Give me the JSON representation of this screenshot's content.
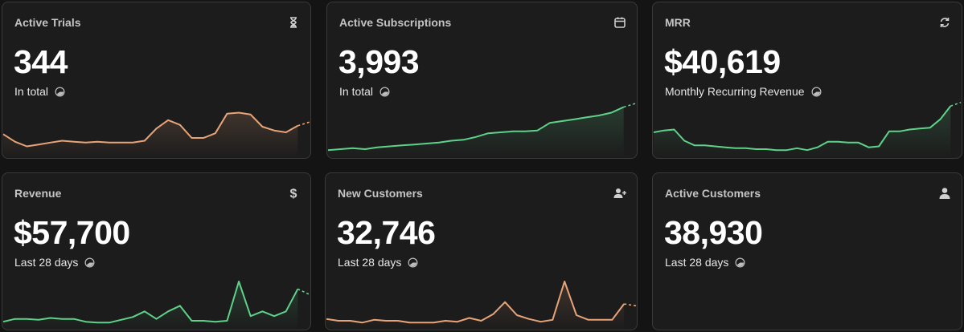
{
  "colors": {
    "orange": "#e8a478",
    "green": "#5fd28a",
    "icon": "#cfcfcf"
  },
  "cards": [
    {
      "title": "Active Trials",
      "value": "344",
      "subtitle": "In total",
      "icon": "hourglass-icon",
      "color": "orange",
      "series": [
        22,
        14,
        9,
        11,
        13,
        15,
        14,
        13,
        14,
        13,
        13,
        13,
        15,
        28,
        37,
        32,
        18,
        18,
        23,
        44,
        45,
        43,
        30,
        26,
        24,
        31
      ],
      "dashed_tail": [
        31,
        35
      ]
    },
    {
      "title": "Active Subscriptions",
      "value": "3,993",
      "subtitle": "In total",
      "icon": "calendar-icon",
      "color": "green",
      "series": [
        5,
        6,
        7,
        6,
        8,
        9,
        10,
        11,
        12,
        13,
        15,
        16,
        19,
        23,
        24,
        25,
        25,
        26,
        34,
        36,
        38,
        40,
        42,
        45,
        51
      ],
      "dashed_tail": [
        51,
        55
      ]
    },
    {
      "title": "MRR",
      "value": "$40,619",
      "subtitle": "Monthly Recurring Revenue",
      "icon": "refresh-icon",
      "color": "green",
      "series": [
        24,
        26,
        27,
        15,
        10,
        10,
        9,
        8,
        7,
        7,
        6,
        6,
        5,
        5,
        7,
        5,
        8,
        14,
        14,
        13,
        13,
        8,
        9,
        25,
        25,
        27,
        28,
        29,
        38,
        52
      ],
      "dashed_tail": [
        52,
        56
      ]
    },
    {
      "title": "Revenue",
      "value": "$57,700",
      "subtitle": "Last 28 days",
      "icon": "dollar-icon",
      "color": "green",
      "series": [
        5,
        8,
        8,
        7,
        9,
        8,
        8,
        5,
        4,
        4,
        7,
        10,
        16,
        8,
        16,
        22,
        6,
        6,
        5,
        6,
        48,
        11,
        16,
        11,
        16,
        40
      ],
      "dashed_tail": [
        40,
        34
      ]
    },
    {
      "title": "New Customers",
      "value": "32,746",
      "subtitle": "Last 28 days",
      "icon": "add-user-icon",
      "color": "orange",
      "series": [
        8,
        6,
        6,
        4,
        7,
        6,
        6,
        4,
        4,
        4,
        6,
        5,
        9,
        6,
        13,
        26,
        12,
        8,
        5,
        7,
        48,
        12,
        7,
        7,
        7,
        24
      ],
      "dashed_tail": [
        24,
        22
      ]
    },
    {
      "title": "Active Customers",
      "value": "38,930",
      "subtitle": "Last 28 days",
      "icon": "user-icon",
      "color": "green",
      "series": [],
      "dashed_tail": []
    }
  ]
}
